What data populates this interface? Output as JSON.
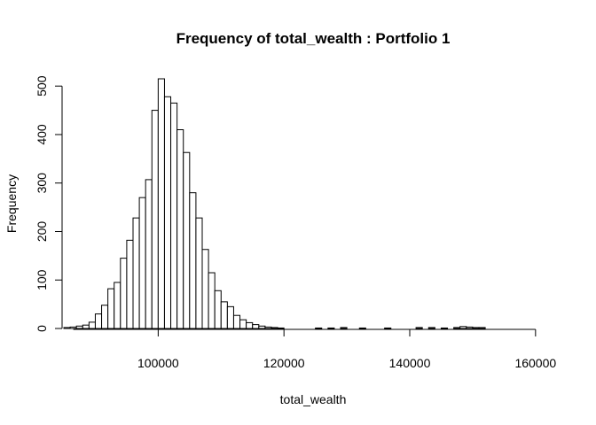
{
  "chart_data": {
    "type": "bar",
    "title": "Frequency of total_wealth : Portfolio 1",
    "xlabel": "total_wealth",
    "ylabel": "Frequency",
    "x_ticks": [
      100000,
      120000,
      140000,
      160000
    ],
    "x_tick_labels": [
      "100000",
      "120000",
      "140000",
      "160000"
    ],
    "y_ticks": [
      0,
      100,
      200,
      300,
      400,
      500
    ],
    "y_tick_labels": [
      "0",
      "100",
      "200",
      "300",
      "400",
      "500"
    ],
    "xlim": [
      85000,
      162000
    ],
    "ylim": [
      0,
      515
    ],
    "bin_width": 1000,
    "bin_start": 85000,
    "counts": [
      2,
      3,
      5,
      7,
      13,
      30,
      48,
      82,
      95,
      145,
      182,
      228,
      270,
      307,
      450,
      515,
      478,
      465,
      410,
      363,
      280,
      228,
      163,
      115,
      78,
      55,
      45,
      27,
      18,
      12,
      8,
      5,
      3,
      2,
      1,
      0,
      0,
      0,
      0,
      0,
      1,
      0,
      1,
      0,
      2,
      0,
      0,
      1,
      0,
      0,
      0,
      1,
      0,
      0,
      0,
      0,
      2,
      0,
      2,
      0,
      1,
      0,
      2,
      4,
      3,
      2,
      2,
      0,
      0,
      0,
      0,
      0,
      0,
      0,
      0,
      0,
      0
    ],
    "grid": false,
    "legend": "none"
  }
}
